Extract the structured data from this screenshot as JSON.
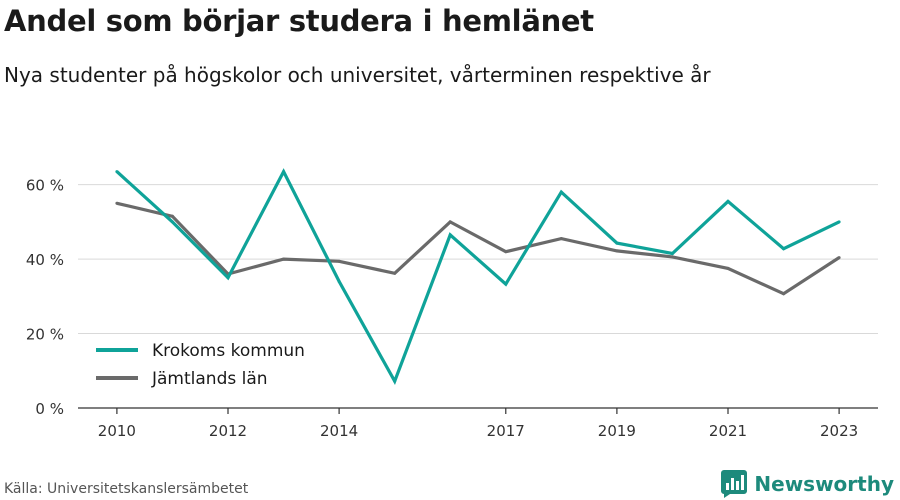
{
  "header": {
    "title": "Andel som börjar studera i hemlänet",
    "subtitle": "Nya studenter på högskolor och universitet, vårterminen respektive år"
  },
  "footer": {
    "source": "Källa: Universitetskanslersämbetet",
    "brand": "Newsworthy",
    "brand_icon": "bar-chart-logo-icon"
  },
  "colors": {
    "krokom": "#0fa399",
    "jamtland": "#6a6a6a",
    "brand": "#1d8a7c"
  },
  "chart_data": {
    "type": "line",
    "x": [
      2010,
      2011,
      2012,
      2013,
      2014,
      2015,
      2016,
      2017,
      2018,
      2019,
      2020,
      2021,
      2022,
      2023
    ],
    "xticks": [
      {
        "value": 2010,
        "label": "2010"
      },
      {
        "value": 2012,
        "label": "2012"
      },
      {
        "value": 2014,
        "label": "2014"
      },
      {
        "value": 2017,
        "label": "2017"
      },
      {
        "value": 2019,
        "label": "2019"
      },
      {
        "value": 2021,
        "label": "2021"
      },
      {
        "value": 2023,
        "label": "2023"
      }
    ],
    "yticks": [
      {
        "value": 0,
        "label": "0 %"
      },
      {
        "value": 20,
        "label": "20 %"
      },
      {
        "value": 40,
        "label": "40 %"
      },
      {
        "value": 60,
        "label": "60 %"
      }
    ],
    "xlim": [
      2009.3,
      2023.7
    ],
    "ylim": [
      0,
      72
    ],
    "grid": true,
    "legend_position": "bottom-left",
    "series": [
      {
        "name": "Krokoms kommun",
        "color": "#0fa399",
        "values": [
          63.5,
          50,
          35,
          63.5,
          34,
          7.2,
          46.5,
          33.3,
          58,
          44.3,
          41.5,
          55.5,
          42.8,
          50
        ]
      },
      {
        "name": "Jämtlands län",
        "color": "#6a6a6a",
        "values": [
          55,
          51.5,
          36,
          40,
          39.4,
          36.2,
          50,
          42,
          45.5,
          42.2,
          40.6,
          37.5,
          30.7,
          40.4
        ]
      }
    ]
  }
}
